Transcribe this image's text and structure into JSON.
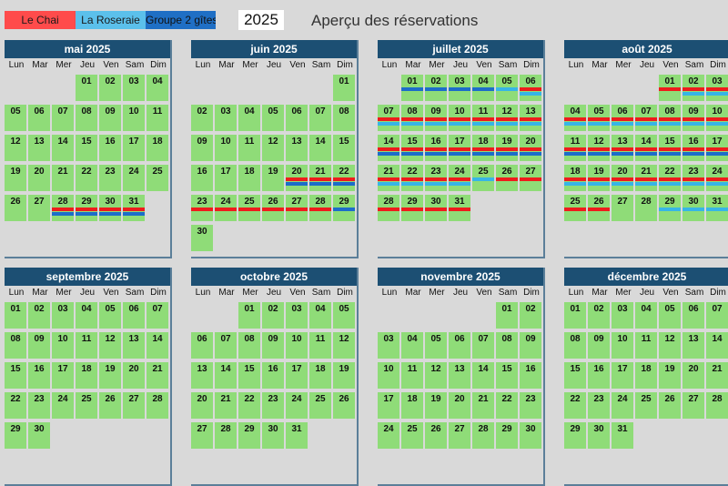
{
  "legend": [
    {
      "label": "Le Chai",
      "color": "#ff4b4b"
    },
    {
      "label": "La Roseraie",
      "color": "#5bc0eb"
    },
    {
      "label": "Groupe 2 gîtes",
      "color": "#1f6fc5"
    }
  ],
  "year": "2025",
  "title": "Aperçu des réservations",
  "weekdays": [
    "Lun",
    "Mar",
    "Mer",
    "Jeu",
    "Ven",
    "Sam",
    "Dim"
  ],
  "months": [
    {
      "name": "mai 2025",
      "start_dow": 3,
      "days": 31,
      "bookings": {
        "28": [
          "chai",
          "groupe"
        ],
        "29": [
          "chai",
          "groupe"
        ],
        "30": [
          "chai",
          "groupe"
        ],
        "31": [
          "chai",
          "groupe"
        ]
      }
    },
    {
      "name": "juin 2025",
      "start_dow": 6,
      "days": 30,
      "bookings": {
        "20": [
          "chai",
          "groupe"
        ],
        "21": [
          "chai",
          "groupe"
        ],
        "22": [
          "chai",
          "groupe"
        ],
        "23": [
          "chai"
        ],
        "24": [
          "chai"
        ],
        "25": [
          "chai"
        ],
        "26": [
          "chai"
        ],
        "27": [
          "chai"
        ],
        "28": [
          "chai"
        ],
        "29": [
          "groupe"
        ]
      }
    },
    {
      "name": "juillet 2025",
      "start_dow": 1,
      "days": 31,
      "bookings": {
        "1": [
          "groupe"
        ],
        "2": [
          "groupe"
        ],
        "3": [
          "groupe"
        ],
        "4": [
          "groupe"
        ],
        "5": [
          "roseraie"
        ],
        "6": [
          "chai",
          "roseraie"
        ],
        "7": [
          "chai",
          "roseraie"
        ],
        "8": [
          "chai",
          "roseraie"
        ],
        "9": [
          "chai",
          "roseraie"
        ],
        "10": [
          "chai",
          "roseraie"
        ],
        "11": [
          "chai",
          "roseraie"
        ],
        "12": [
          "chai",
          "roseraie"
        ],
        "13": [
          "chai",
          "roseraie"
        ],
        "14": [
          "chai",
          "groupe"
        ],
        "15": [
          "chai",
          "groupe"
        ],
        "16": [
          "chai",
          "groupe"
        ],
        "17": [
          "chai",
          "groupe"
        ],
        "18": [
          "chai",
          "groupe"
        ],
        "19": [
          "chai",
          "groupe"
        ],
        "20": [
          "chai",
          "groupe"
        ],
        "21": [
          "chai",
          "roseraie"
        ],
        "22": [
          "chai",
          "roseraie"
        ],
        "23": [
          "chai",
          "roseraie"
        ],
        "24": [
          "chai",
          "roseraie"
        ],
        "25": [
          "roseraie"
        ],
        "26": [
          "chai"
        ],
        "27": [
          "chai"
        ],
        "28": [
          "chai"
        ],
        "29": [
          "chai"
        ],
        "30": [
          "chai"
        ],
        "31": [
          "chai"
        ]
      }
    },
    {
      "name": "août 2025",
      "start_dow": 4,
      "days": 31,
      "bookings": {
        "1": [
          "chai"
        ],
        "2": [
          "chai",
          "roseraie"
        ],
        "3": [
          "chai",
          "roseraie"
        ],
        "4": [
          "chai",
          "roseraie"
        ],
        "5": [
          "chai",
          "roseraie"
        ],
        "6": [
          "chai",
          "roseraie"
        ],
        "7": [
          "chai",
          "roseraie"
        ],
        "8": [
          "chai",
          "roseraie"
        ],
        "9": [
          "chai",
          "roseraie"
        ],
        "10": [
          "chai",
          "roseraie"
        ],
        "11": [
          "chai",
          "groupe"
        ],
        "12": [
          "chai",
          "groupe"
        ],
        "13": [
          "chai",
          "groupe"
        ],
        "14": [
          "chai",
          "groupe"
        ],
        "15": [
          "chai",
          "groupe"
        ],
        "16": [
          "chai",
          "groupe"
        ],
        "17": [
          "chai",
          "groupe"
        ],
        "18": [
          "chai",
          "roseraie"
        ],
        "19": [
          "chai",
          "roseraie"
        ],
        "20": [
          "chai",
          "roseraie"
        ],
        "21": [
          "chai",
          "roseraie"
        ],
        "22": [
          "chai",
          "roseraie"
        ],
        "23": [
          "chai",
          "roseraie"
        ],
        "24": [
          "chai",
          "roseraie"
        ],
        "25": [
          "chai"
        ],
        "26": [
          "chai"
        ],
        "29": [
          "roseraie"
        ],
        "30": [
          "roseraie"
        ],
        "31": [
          "roseraie"
        ]
      }
    },
    {
      "name": "septembre 2025",
      "start_dow": 0,
      "days": 30,
      "bookings": {}
    },
    {
      "name": "octobre 2025",
      "start_dow": 2,
      "days": 31,
      "bookings": {}
    },
    {
      "name": "novembre 2025",
      "start_dow": 5,
      "days": 30,
      "bookings": {}
    },
    {
      "name": "décembre 2025",
      "start_dow": 0,
      "days": 31,
      "bookings": {}
    }
  ]
}
